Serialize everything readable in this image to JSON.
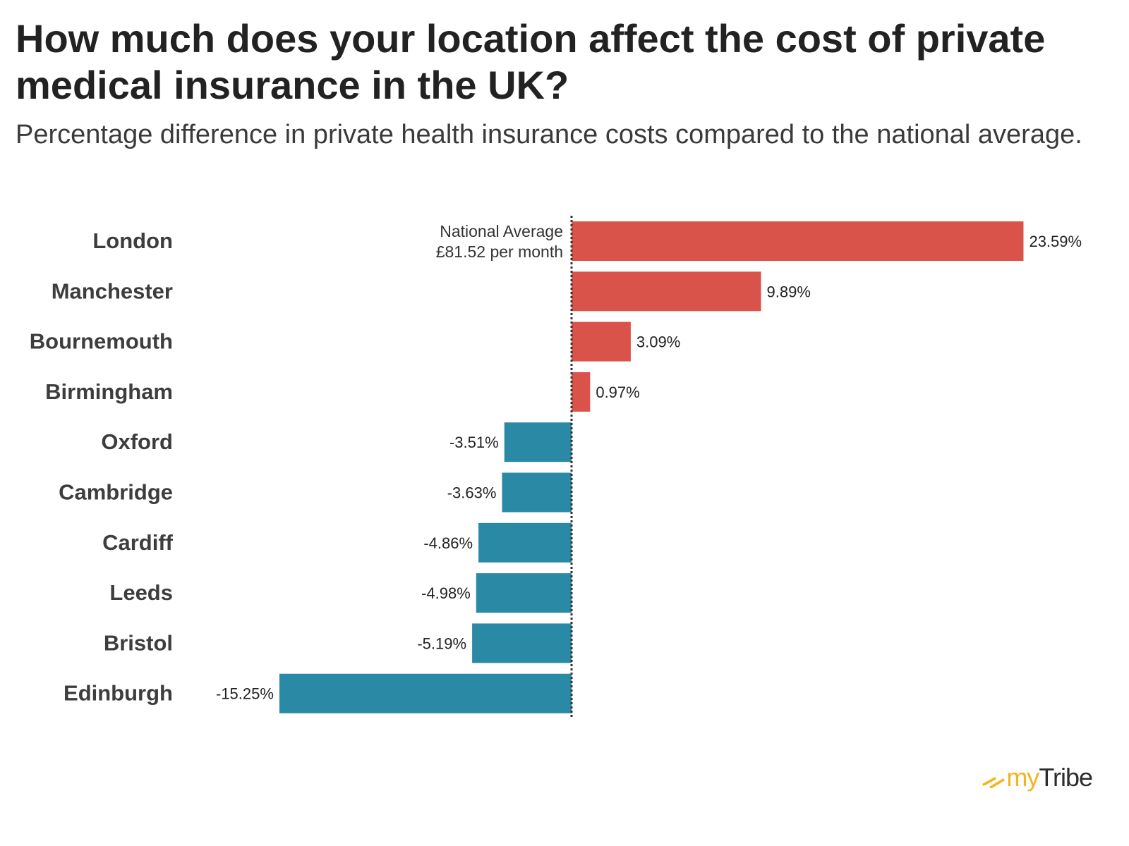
{
  "title": "How much does your location affect the cost of private medical insurance in the UK?",
  "subtitle": "Percentage difference in private health insurance costs compared to the national average.",
  "reference": {
    "line1": "National Average",
    "line2": "£81.52 per month",
    "value": 0
  },
  "colors": {
    "positive": "#d9534a",
    "negative": "#2a8aa5",
    "reference_line": "#333333",
    "logo_accent": "#f2b51e"
  },
  "brand": {
    "my": "my",
    "tribe": "Tribe"
  },
  "chart_data": {
    "type": "bar",
    "orientation": "horizontal",
    "title": "How much does your location affect the cost of private medical insurance in the UK?",
    "subtitle": "Percentage difference in private health insurance costs compared to the national average.",
    "xlabel": "",
    "ylabel": "",
    "xlim": [
      -15.25,
      23.59
    ],
    "grid": false,
    "categories": [
      "London",
      "Manchester",
      "Bournemouth",
      "Birmingham",
      "Oxford",
      "Cambridge",
      "Cardiff",
      "Leeds",
      "Bristol",
      "Edinburgh"
    ],
    "values": [
      23.59,
      9.89,
      3.09,
      0.97,
      -3.51,
      -3.63,
      -4.86,
      -4.98,
      -5.19,
      -15.25
    ],
    "value_labels": [
      "23.59%",
      "9.89%",
      "3.09%",
      "0.97%",
      "-3.51%",
      "-3.63%",
      "-4.86%",
      "-4.98%",
      "-5.19%",
      "-15.25%"
    ],
    "annotations": [
      "National Average",
      "£81.52 per month"
    ]
  }
}
